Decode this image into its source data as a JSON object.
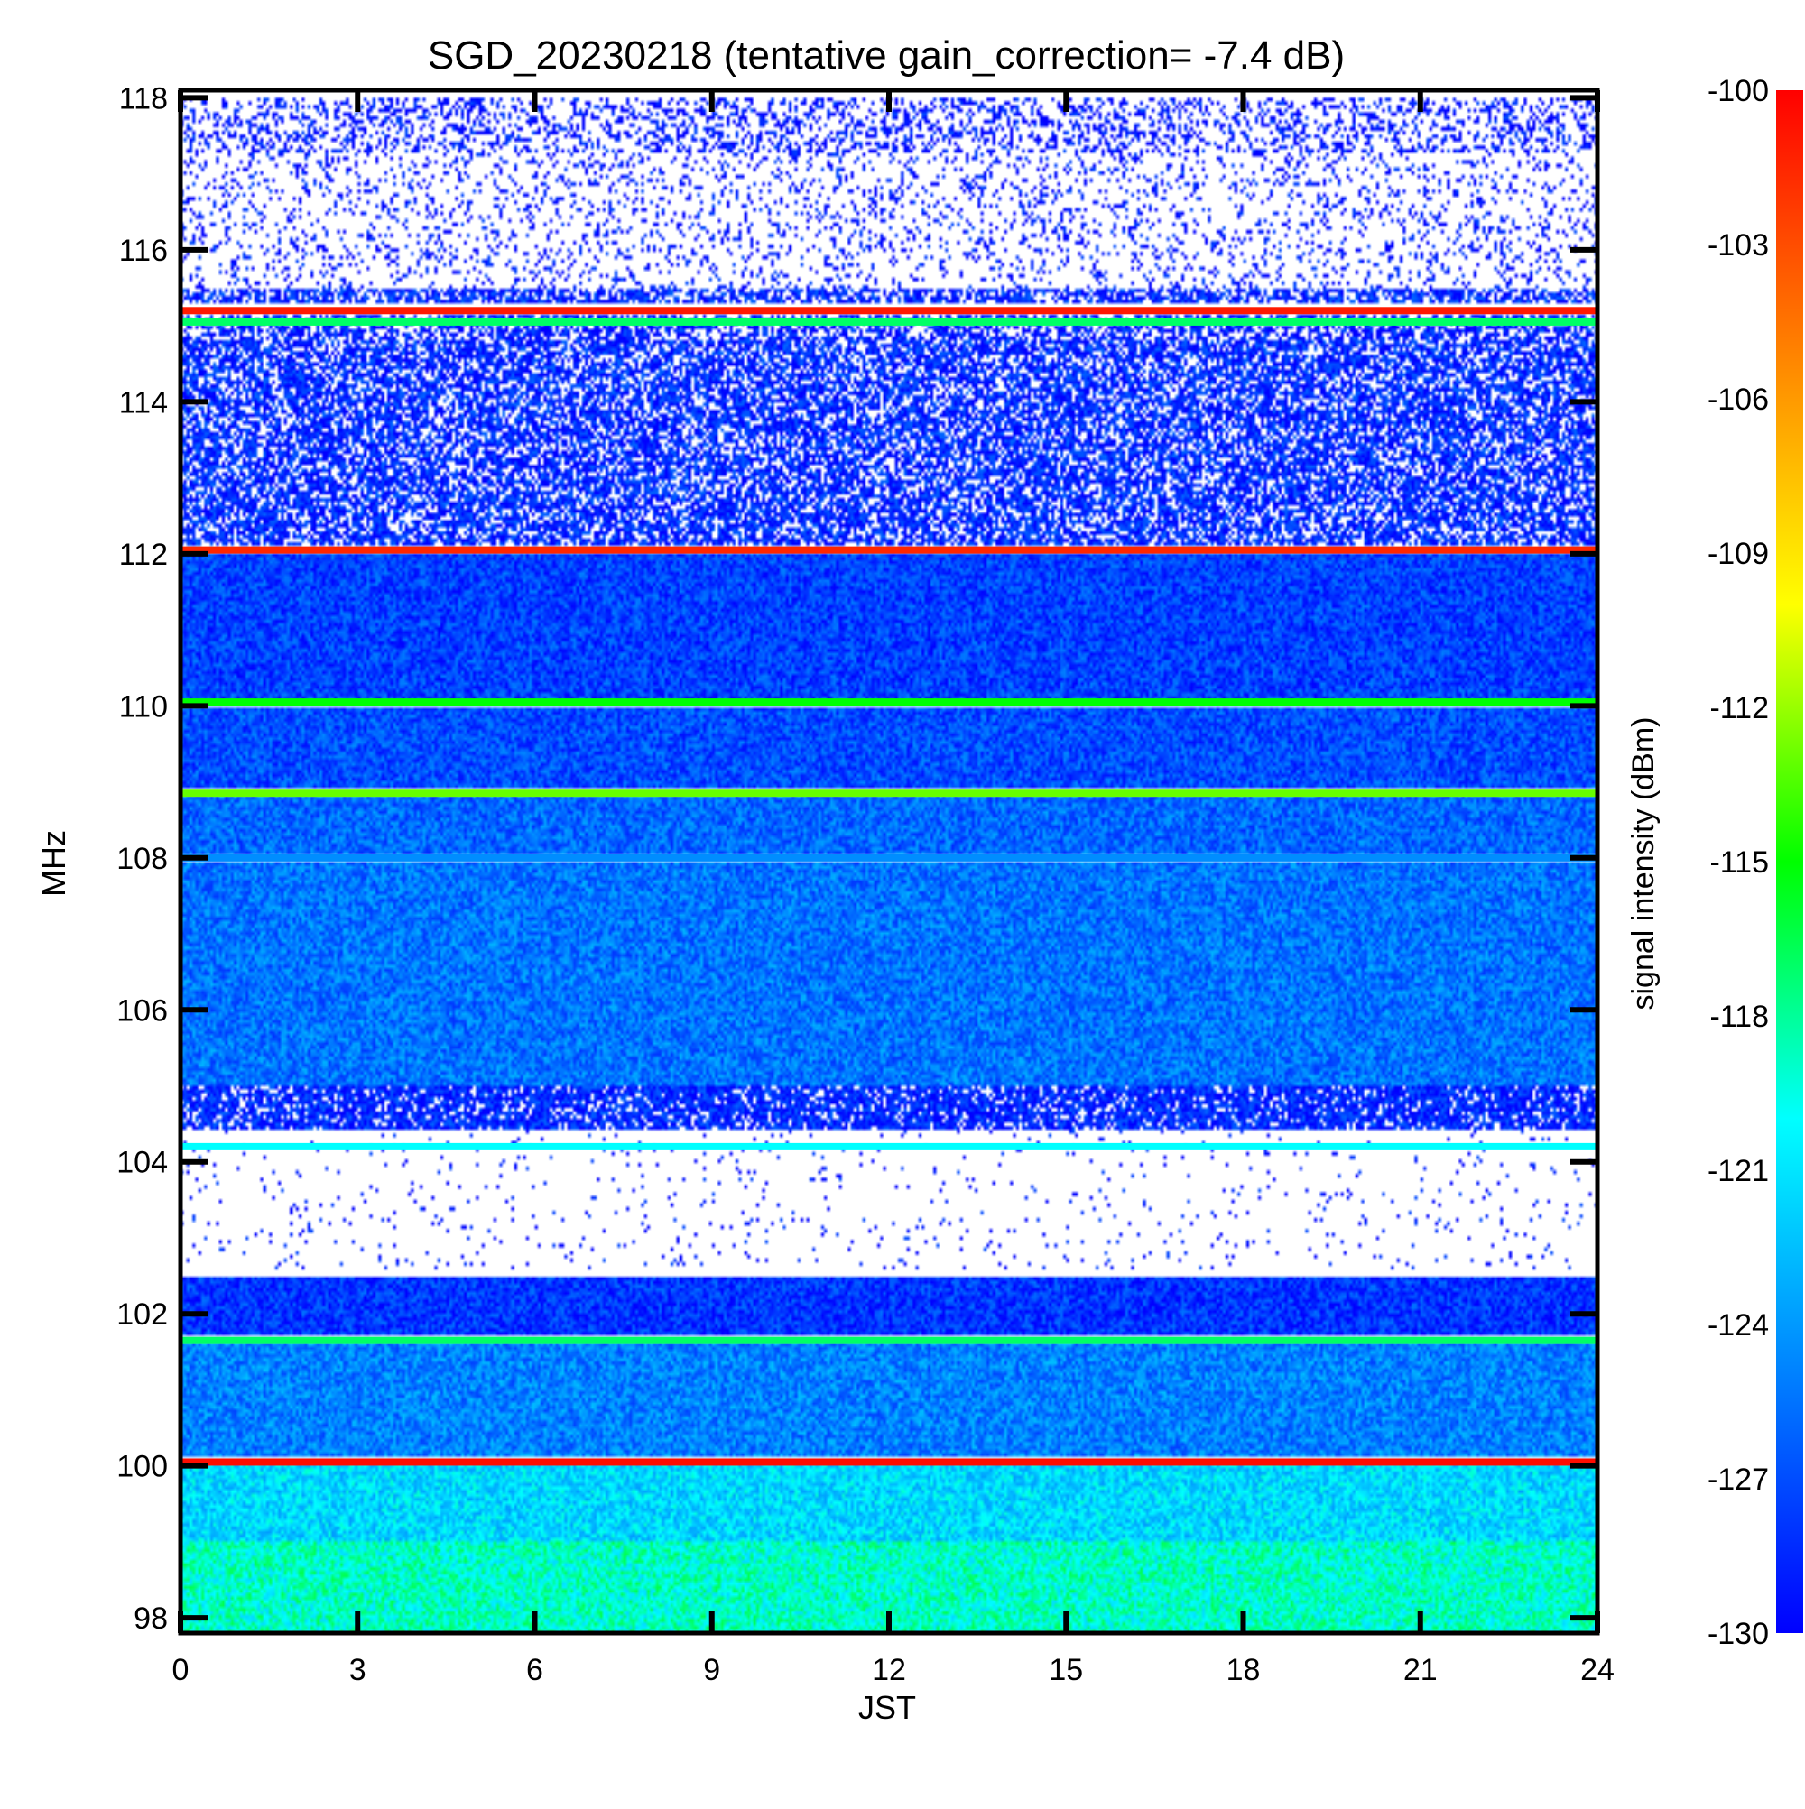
{
  "chart_data": {
    "type": "heatmap",
    "title": "SGD_20230218 (tentative gain_correction= -7.4 dB)",
    "xlabel": "JST",
    "ylabel": "MHz",
    "colorbar_label": "signal intensity (dBm)",
    "xlim": [
      0,
      24
    ],
    "ylim": [
      97.8,
      118.1
    ],
    "x_ticks": [
      0,
      3,
      6,
      9,
      12,
      15,
      18,
      21,
      24
    ],
    "y_ticks": [
      98,
      100,
      102,
      104,
      106,
      108,
      110,
      112,
      114,
      116,
      118
    ],
    "colorbar_range": [
      -130,
      -100
    ],
    "colorbar_ticks": [
      -100,
      -103,
      -106,
      -109,
      -112,
      -115,
      -118,
      -121,
      -124,
      -127,
      -130
    ],
    "colormap": [
      "#0000ff",
      "#0080ff",
      "#00ffff",
      "#00ff00",
      "#ffff00",
      "#ff8000",
      "#ff0000"
    ],
    "bands": [
      {
        "f1": 117.3,
        "f2": 118.0,
        "dbm": -129.5,
        "sparse": true,
        "density": 0.35
      },
      {
        "f1": 115.5,
        "f2": 117.3,
        "dbm": -129.5,
        "sparse": true,
        "density": 0.18
      },
      {
        "f1": 115.3,
        "f2": 115.5,
        "dbm": -128.5,
        "sparse": true,
        "density": 0.7
      },
      {
        "f1": 114.8,
        "f2": 115.15,
        "dbm": -129.0,
        "sparse": true,
        "density": 0.6
      },
      {
        "f1": 112.1,
        "f2": 114.8,
        "dbm": -128.5,
        "sparse": true,
        "density": 0.72
      },
      {
        "f1": 110.1,
        "f2": 112.0,
        "dbm": -127.5,
        "sparse": false
      },
      {
        "f1": 108.9,
        "f2": 110.0,
        "dbm": -127.0,
        "sparse": false
      },
      {
        "f1": 108.05,
        "f2": 108.8,
        "dbm": -126.0,
        "sparse": false
      },
      {
        "f1": 105.0,
        "f2": 107.95,
        "dbm": -125.5,
        "sparse": false
      },
      {
        "f1": 104.4,
        "f2": 105.0,
        "dbm": -128.5,
        "sparse": true,
        "density": 0.85
      },
      {
        "f1": 102.6,
        "f2": 104.4,
        "dbm": -129.5,
        "sparse": true,
        "density": 0.04
      },
      {
        "f1": 101.7,
        "f2": 102.5,
        "dbm": -128.0,
        "sparse": false
      },
      {
        "f1": 100.1,
        "f2": 101.6,
        "dbm": -125.0,
        "sparse": false
      },
      {
        "f1": 99.0,
        "f2": 100.0,
        "dbm": -121.5,
        "sparse": false
      },
      {
        "f1": 97.8,
        "f2": 99.0,
        "dbm": -119.0,
        "sparse": false
      }
    ],
    "stations": [
      {
        "freq": 115.2,
        "dbm": -101.0
      },
      {
        "freq": 115.05,
        "dbm": -117.0
      },
      {
        "freq": 112.05,
        "dbm": -101.5
      },
      {
        "freq": 110.05,
        "dbm": -115.0
      },
      {
        "freq": 108.85,
        "dbm": -113.0
      },
      {
        "freq": 108.0,
        "dbm": -124.5
      },
      {
        "freq": 104.2,
        "dbm": -120.0
      },
      {
        "freq": 101.65,
        "dbm": -117.0
      },
      {
        "freq": 100.05,
        "dbm": -100.5
      }
    ]
  }
}
